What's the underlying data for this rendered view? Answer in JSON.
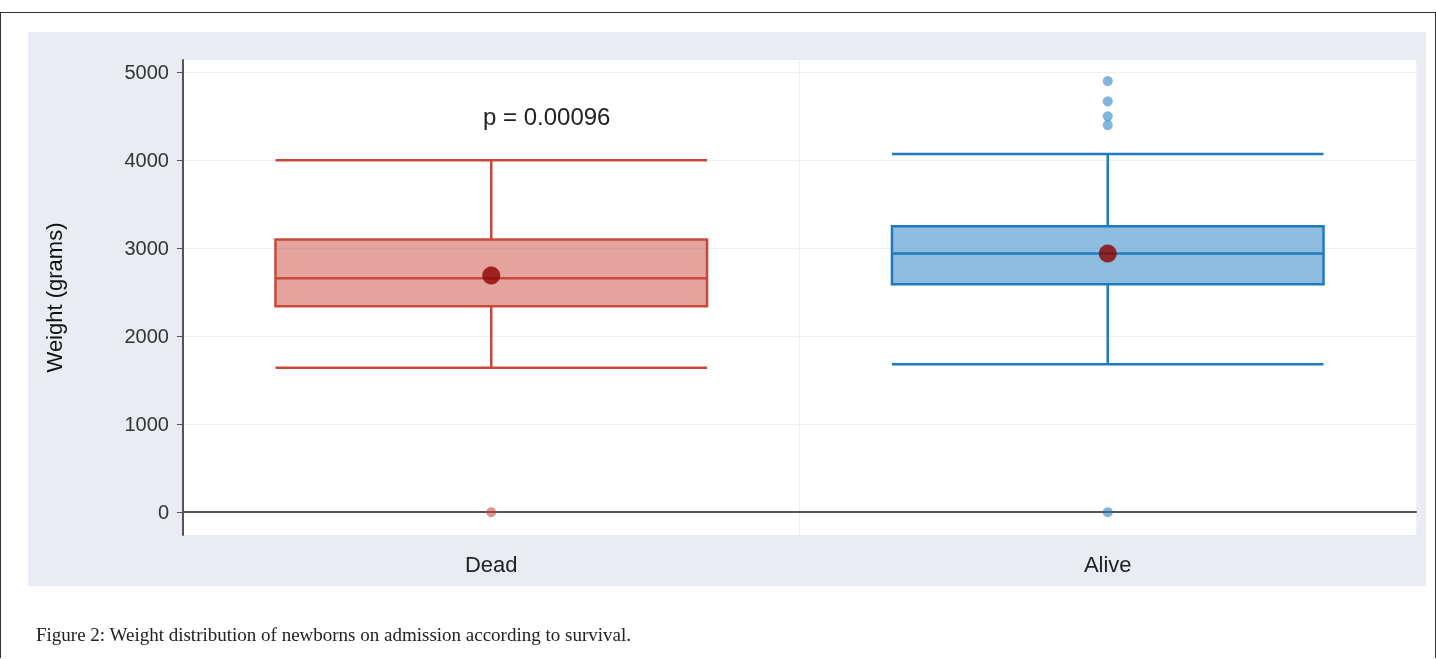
{
  "chart_data": {
    "type": "box",
    "ylabel": "Weight (grams)",
    "categories": [
      "Dead",
      "Alive"
    ],
    "boxes": [
      {
        "low": 1640,
        "q1": 2340,
        "median": 2660,
        "q3": 3100,
        "high": 4000,
        "mean": 2690,
        "outliers": [
          0
        ]
      },
      {
        "low": 1680,
        "q1": 2590,
        "median": 2940,
        "q3": 3250,
        "high": 4070,
        "mean": 2940,
        "outliers": [
          0,
          4400,
          4500,
          4670,
          4900
        ]
      }
    ],
    "colors": [
      "#c9483a",
      "#1f7bbf"
    ],
    "ylim": [
      -260,
      5140
    ],
    "yticks": [
      0,
      1000,
      2000,
      3000,
      4000,
      5000
    ],
    "grid": true,
    "annotations": [
      "p = 0.00096",
      "Figure 2: Weight distribution of newborns on admission according to survival."
    ]
  }
}
